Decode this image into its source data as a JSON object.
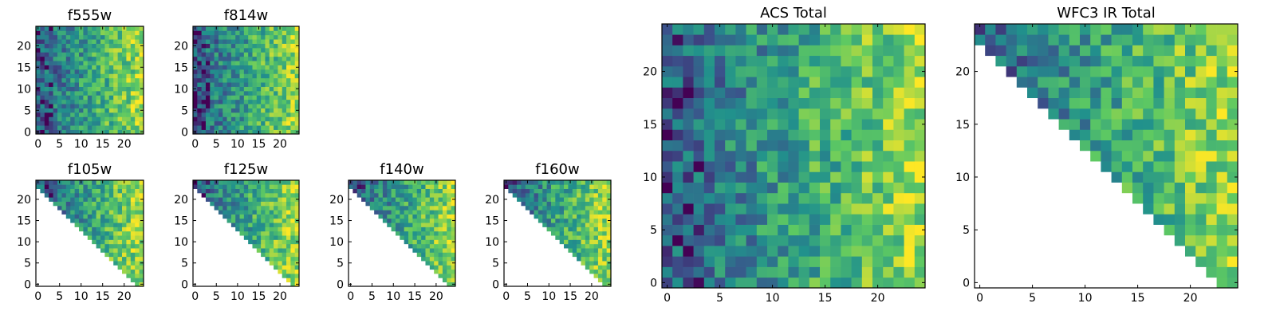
{
  "chart_data": [
    {
      "type": "heatmap",
      "title": "f555w",
      "colormap": "viridis",
      "grid_size": 25,
      "triangular_mask": false,
      "seed": 11,
      "x_ticks": [
        "0",
        "5",
        "10",
        "15",
        "20"
      ],
      "y_ticks": [
        "0",
        "5",
        "10",
        "15",
        "20"
      ],
      "xlim": [
        -0.5,
        24.5
      ],
      "ylim": [
        -0.5,
        24.5
      ]
    },
    {
      "type": "heatmap",
      "title": "f814w",
      "colormap": "viridis",
      "grid_size": 25,
      "triangular_mask": false,
      "seed": 23,
      "x_ticks": [
        "0",
        "5",
        "10",
        "15",
        "20"
      ],
      "y_ticks": [
        "0",
        "5",
        "10",
        "15",
        "20"
      ],
      "xlim": [
        -0.5,
        24.5
      ],
      "ylim": [
        -0.5,
        24.5
      ]
    },
    {
      "type": "heatmap",
      "title": "f105w",
      "colormap": "viridis",
      "grid_size": 25,
      "triangular_mask": true,
      "seed": 37,
      "x_ticks": [
        "0",
        "5",
        "10",
        "15",
        "20"
      ],
      "y_ticks": [
        "0",
        "5",
        "10",
        "15",
        "20"
      ],
      "xlim": [
        -0.5,
        24.5
      ],
      "ylim": [
        -0.5,
        24.5
      ]
    },
    {
      "type": "heatmap",
      "title": "f125w",
      "colormap": "viridis",
      "grid_size": 25,
      "triangular_mask": true,
      "seed": 41,
      "x_ticks": [
        "0",
        "5",
        "10",
        "15",
        "20"
      ],
      "y_ticks": [
        "0",
        "5",
        "10",
        "15",
        "20"
      ],
      "xlim": [
        -0.5,
        24.5
      ],
      "ylim": [
        -0.5,
        24.5
      ]
    },
    {
      "type": "heatmap",
      "title": "f140w",
      "colormap": "viridis",
      "grid_size": 25,
      "triangular_mask": true,
      "seed": 53,
      "x_ticks": [
        "0",
        "5",
        "10",
        "15",
        "20"
      ],
      "y_ticks": [
        "0",
        "5",
        "10",
        "15",
        "20"
      ],
      "xlim": [
        -0.5,
        24.5
      ],
      "ylim": [
        -0.5,
        24.5
      ]
    },
    {
      "type": "heatmap",
      "title": "f160w",
      "colormap": "viridis",
      "grid_size": 25,
      "triangular_mask": true,
      "seed": 67,
      "x_ticks": [
        "0",
        "5",
        "10",
        "15",
        "20"
      ],
      "y_ticks": [
        "0",
        "5",
        "10",
        "15",
        "20"
      ],
      "xlim": [
        -0.5,
        24.5
      ],
      "ylim": [
        -0.5,
        24.5
      ]
    },
    {
      "type": "heatmap",
      "title": "ACS Total",
      "colormap": "viridis",
      "grid_size": 25,
      "triangular_mask": false,
      "seed": 79,
      "x_ticks": [
        "0",
        "5",
        "10",
        "15",
        "20"
      ],
      "y_ticks": [
        "0",
        "5",
        "10",
        "15",
        "20"
      ],
      "xlim": [
        -0.5,
        24.5
      ],
      "ylim": [
        -0.5,
        24.5
      ]
    },
    {
      "type": "heatmap",
      "title": "WFC3 IR Total",
      "colormap": "viridis",
      "grid_size": 25,
      "triangular_mask": true,
      "seed": 97,
      "x_ticks": [
        "0",
        "5",
        "10",
        "15",
        "20"
      ],
      "y_ticks": [
        "0",
        "5",
        "10",
        "15",
        "20"
      ],
      "xlim": [
        -0.5,
        24.5
      ],
      "ylim": [
        -0.5,
        24.5
      ]
    }
  ],
  "colors": {
    "viridis_stops": [
      "#440154",
      "#3b528b",
      "#21918c",
      "#5ec962",
      "#fde725"
    ],
    "background": "#ffffff"
  }
}
